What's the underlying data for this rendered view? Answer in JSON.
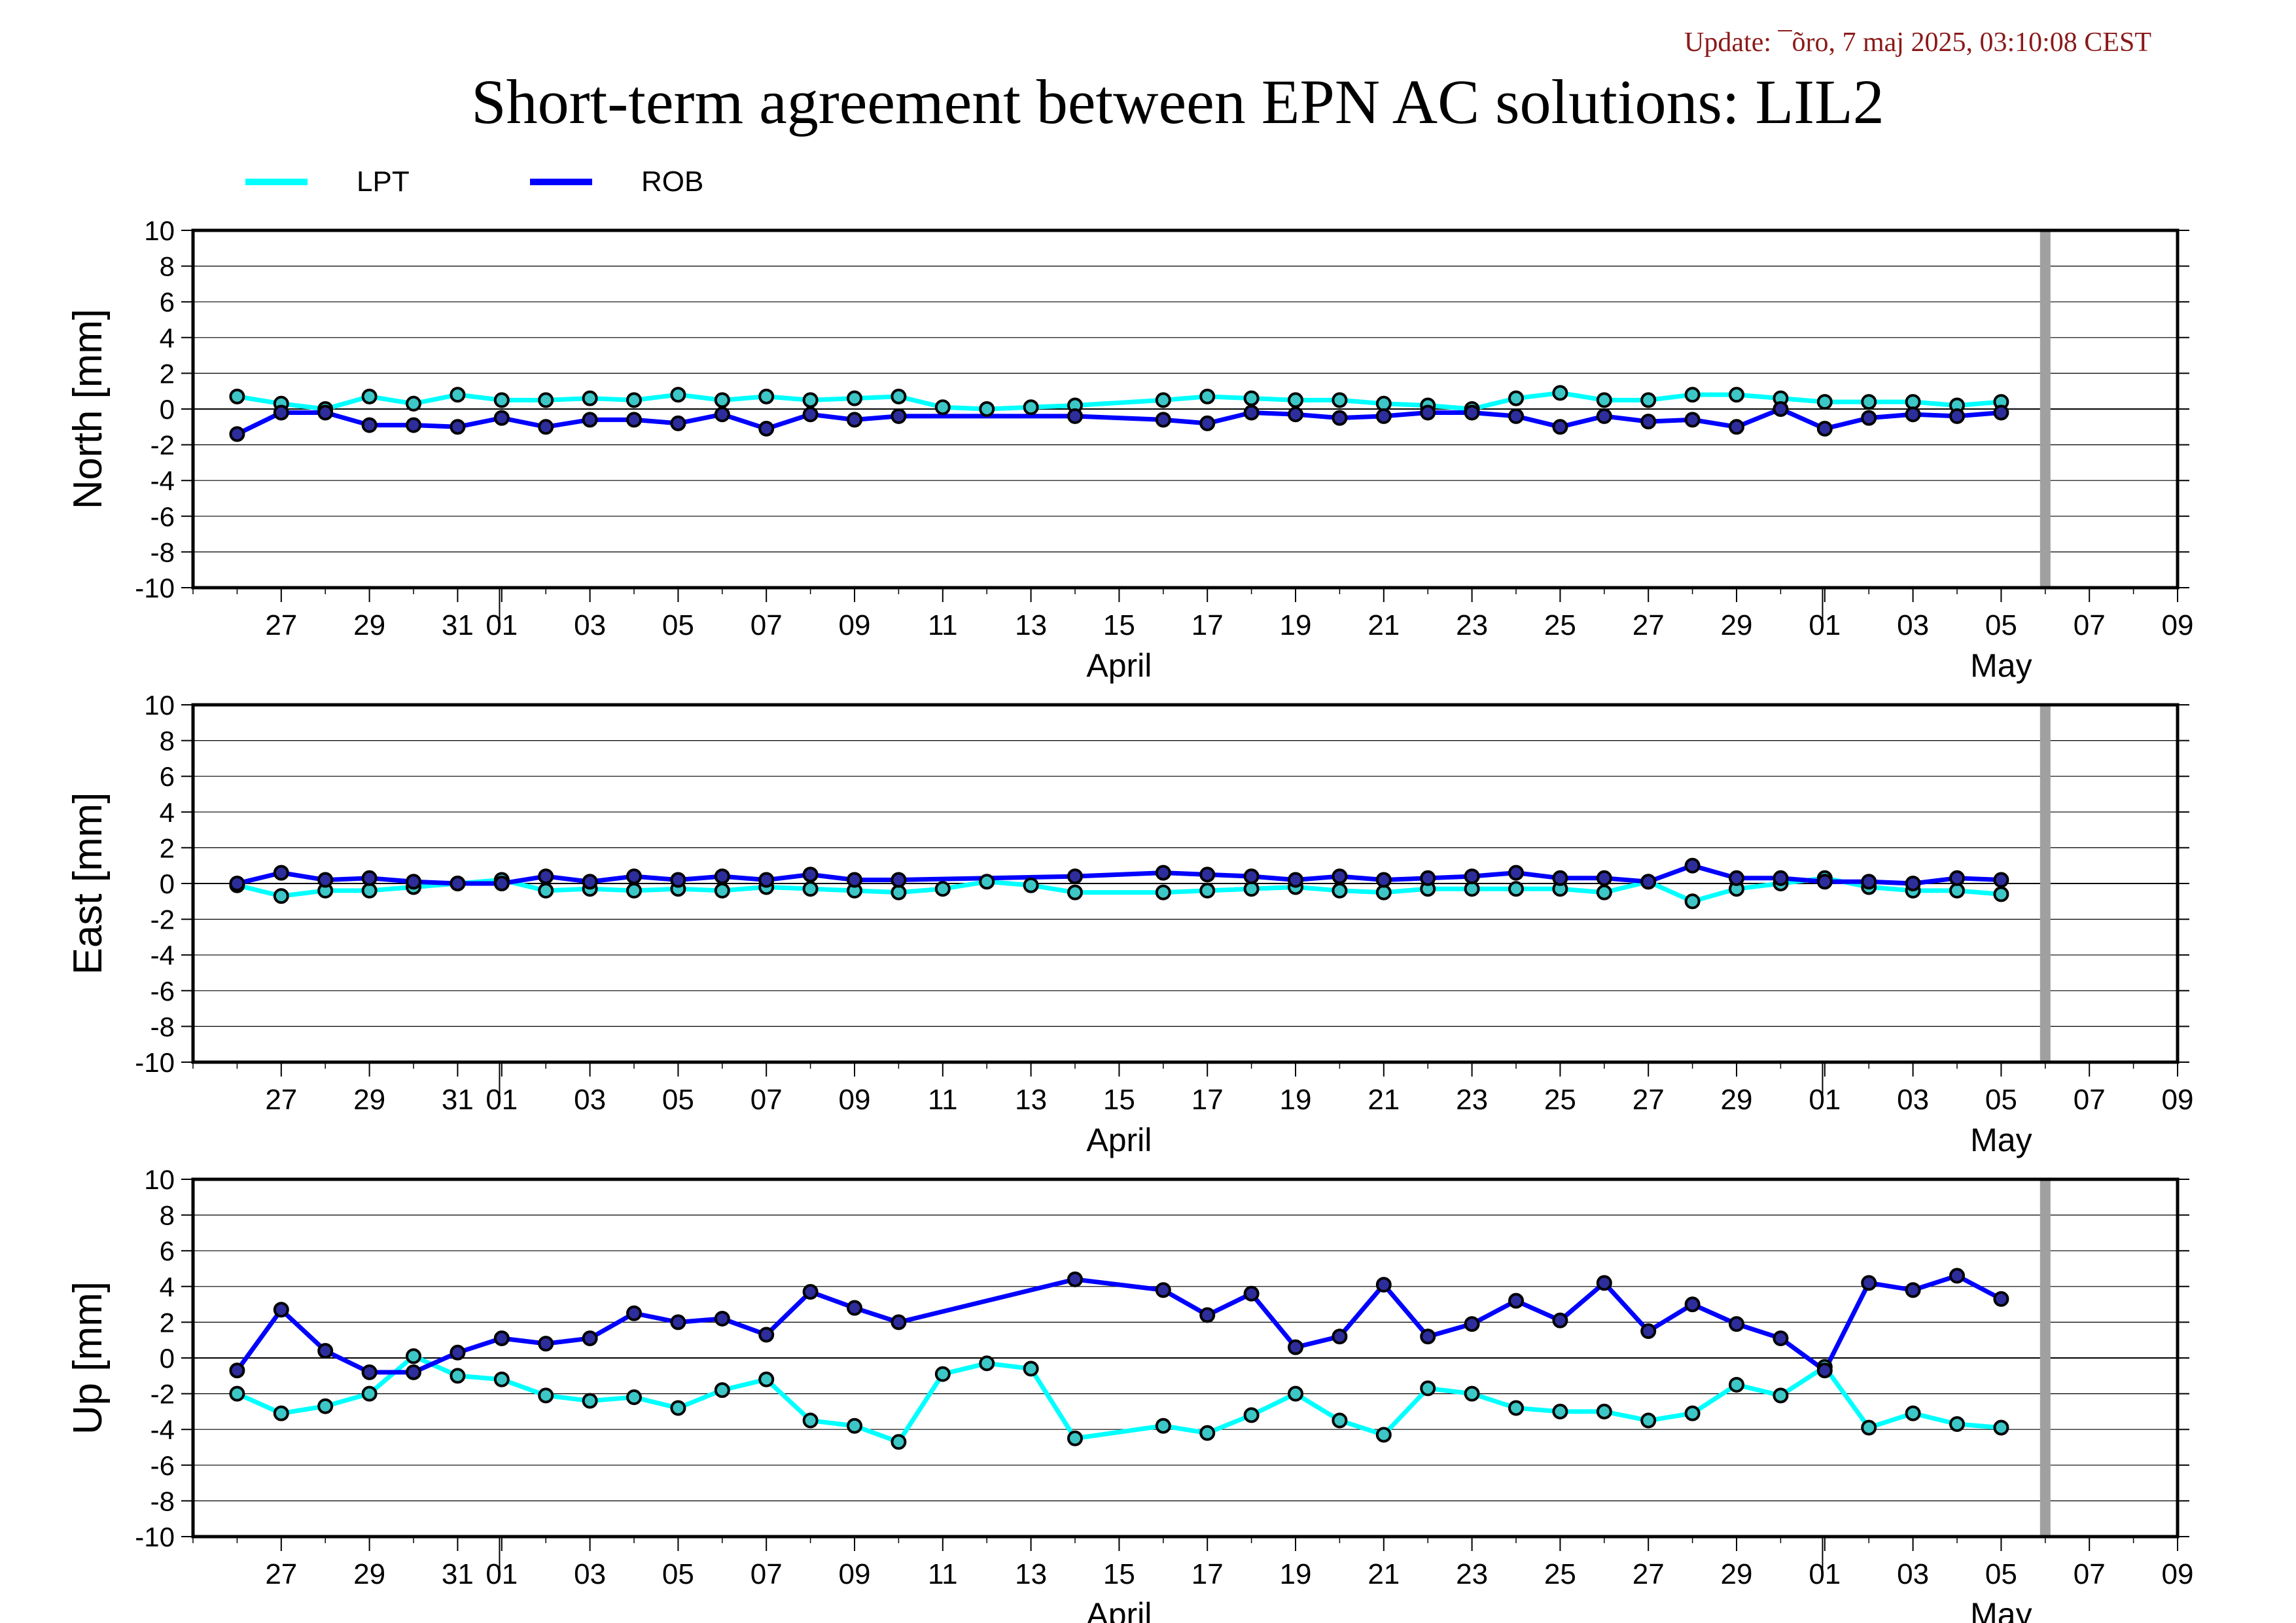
{
  "page": {
    "update_text": "Update: ¯õro, 7 maj 2025, 03:10:08 CEST",
    "title": "Short-term agreement between EPN AC solutions: LIL2"
  },
  "legend": [
    {
      "name": "LPT",
      "color": "#00ffff"
    },
    {
      "name": "ROB",
      "color": "#0000ff"
    }
  ],
  "colors": {
    "update_text": "#8b1a1a",
    "lpt": "#00ffff",
    "rob": "#0000ff",
    "today_marker": "#a0a0a0",
    "grid": "#000000"
  },
  "chart_data": [
    {
      "type": "line",
      "ylabel": "North [mm]",
      "ylim": [
        -10,
        10
      ],
      "yticks": [
        10,
        8,
        6,
        4,
        2,
        0,
        -2,
        -4,
        -6,
        -8,
        -10
      ],
      "xlim": [
        "2025-03-25",
        "2025-05-09"
      ],
      "xticks": [
        "27",
        "29",
        "31",
        "01",
        "03",
        "05",
        "07",
        "09",
        "11",
        "13",
        "15",
        "17",
        "19",
        "21",
        "23",
        "25",
        "27",
        "29",
        "01",
        "03",
        "05",
        "07",
        "09"
      ],
      "month_labels": [
        "April",
        "May"
      ],
      "series": [
        {
          "name": "LPT",
          "x": [
            "2025-03-26",
            "2025-03-27",
            "2025-03-28",
            "2025-03-29",
            "2025-03-30",
            "2025-03-31",
            "2025-04-01",
            "2025-04-02",
            "2025-04-03",
            "2025-04-04",
            "2025-04-05",
            "2025-04-06",
            "2025-04-07",
            "2025-04-08",
            "2025-04-09",
            "2025-04-10",
            "2025-04-11",
            "2025-04-12",
            "2025-04-13",
            "2025-04-14",
            "2025-04-16",
            "2025-04-17",
            "2025-04-18",
            "2025-04-19",
            "2025-04-20",
            "2025-04-21",
            "2025-04-22",
            "2025-04-23",
            "2025-04-24",
            "2025-04-25",
            "2025-04-26",
            "2025-04-27",
            "2025-04-28",
            "2025-04-29",
            "2025-04-30",
            "2025-05-01",
            "2025-05-02",
            "2025-05-03",
            "2025-05-04",
            "2025-05-05"
          ],
          "values": [
            0.7,
            0.3,
            0.0,
            0.7,
            0.3,
            0.8,
            0.5,
            0.5,
            0.6,
            0.5,
            0.8,
            0.5,
            0.7,
            0.5,
            0.6,
            0.7,
            0.1,
            0.0,
            0.1,
            0.2,
            0.5,
            0.7,
            0.6,
            0.5,
            0.5,
            0.3,
            0.2,
            0.0,
            0.6,
            0.9,
            0.5,
            0.5,
            0.8,
            0.8,
            0.6,
            0.4,
            0.4,
            0.4,
            0.2,
            0.4
          ]
        },
        {
          "name": "ROB",
          "x": [
            "2025-03-26",
            "2025-03-27",
            "2025-03-28",
            "2025-03-29",
            "2025-03-30",
            "2025-03-31",
            "2025-04-01",
            "2025-04-02",
            "2025-04-03",
            "2025-04-04",
            "2025-04-05",
            "2025-04-06",
            "2025-04-07",
            "2025-04-08",
            "2025-04-09",
            "2025-04-10",
            "2025-04-14",
            "2025-04-16",
            "2025-04-17",
            "2025-04-18",
            "2025-04-19",
            "2025-04-20",
            "2025-04-21",
            "2025-04-22",
            "2025-04-23",
            "2025-04-24",
            "2025-04-25",
            "2025-04-26",
            "2025-04-27",
            "2025-04-28",
            "2025-04-29",
            "2025-04-30",
            "2025-05-01",
            "2025-05-02",
            "2025-05-03",
            "2025-05-04",
            "2025-05-05"
          ],
          "values": [
            -1.4,
            -0.2,
            -0.2,
            -0.9,
            -0.9,
            -1.0,
            -0.5,
            -1.0,
            -0.6,
            -0.6,
            -0.8,
            -0.3,
            -1.1,
            -0.3,
            -0.6,
            -0.4,
            -0.4,
            -0.6,
            -0.8,
            -0.2,
            -0.3,
            -0.5,
            -0.4,
            -0.2,
            -0.2,
            -0.4,
            -1.0,
            -0.4,
            -0.7,
            -0.6,
            -1.0,
            0.0,
            -1.1,
            -0.5,
            -0.3,
            -0.4,
            -0.2
          ]
        }
      ]
    },
    {
      "type": "line",
      "ylabel": "East [mm]",
      "ylim": [
        -10,
        10
      ],
      "yticks": [
        10,
        8,
        6,
        4,
        2,
        0,
        -2,
        -4,
        -6,
        -8,
        -10
      ],
      "xlim": [
        "2025-03-25",
        "2025-05-09"
      ],
      "xticks": [
        "27",
        "29",
        "31",
        "01",
        "03",
        "05",
        "07",
        "09",
        "11",
        "13",
        "15",
        "17",
        "19",
        "21",
        "23",
        "25",
        "27",
        "29",
        "01",
        "03",
        "05",
        "07",
        "09"
      ],
      "month_labels": [
        "April",
        "May"
      ],
      "series": [
        {
          "name": "LPT",
          "x": [
            "2025-03-26",
            "2025-03-27",
            "2025-03-28",
            "2025-03-29",
            "2025-03-30",
            "2025-03-31",
            "2025-04-01",
            "2025-04-02",
            "2025-04-03",
            "2025-04-04",
            "2025-04-05",
            "2025-04-06",
            "2025-04-07",
            "2025-04-08",
            "2025-04-09",
            "2025-04-10",
            "2025-04-11",
            "2025-04-12",
            "2025-04-13",
            "2025-04-14",
            "2025-04-16",
            "2025-04-17",
            "2025-04-18",
            "2025-04-19",
            "2025-04-20",
            "2025-04-21",
            "2025-04-22",
            "2025-04-23",
            "2025-04-24",
            "2025-04-25",
            "2025-04-26",
            "2025-04-27",
            "2025-04-28",
            "2025-04-29",
            "2025-04-30",
            "2025-05-01",
            "2025-05-02",
            "2025-05-03",
            "2025-05-04",
            "2025-05-05"
          ],
          "values": [
            -0.1,
            -0.7,
            -0.4,
            -0.4,
            -0.2,
            0.0,
            0.2,
            -0.4,
            -0.3,
            -0.4,
            -0.3,
            -0.4,
            -0.2,
            -0.3,
            -0.4,
            -0.5,
            -0.3,
            0.1,
            -0.1,
            -0.5,
            -0.5,
            -0.4,
            -0.3,
            -0.2,
            -0.4,
            -0.5,
            -0.3,
            -0.3,
            -0.3,
            -0.3,
            -0.5,
            0.1,
            -1.0,
            -0.3,
            0.0,
            0.3,
            -0.2,
            -0.4,
            -0.4,
            -0.6
          ]
        },
        {
          "name": "ROB",
          "x": [
            "2025-03-26",
            "2025-03-27",
            "2025-03-28",
            "2025-03-29",
            "2025-03-30",
            "2025-03-31",
            "2025-04-01",
            "2025-04-02",
            "2025-04-03",
            "2025-04-04",
            "2025-04-05",
            "2025-04-06",
            "2025-04-07",
            "2025-04-08",
            "2025-04-09",
            "2025-04-10",
            "2025-04-14",
            "2025-04-16",
            "2025-04-17",
            "2025-04-18",
            "2025-04-19",
            "2025-04-20",
            "2025-04-21",
            "2025-04-22",
            "2025-04-23",
            "2025-04-24",
            "2025-04-25",
            "2025-04-26",
            "2025-04-27",
            "2025-04-28",
            "2025-04-29",
            "2025-04-30",
            "2025-05-01",
            "2025-05-02",
            "2025-05-03",
            "2025-05-04",
            "2025-05-05"
          ],
          "values": [
            0.0,
            0.6,
            0.2,
            0.3,
            0.1,
            0.0,
            0.0,
            0.4,
            0.1,
            0.4,
            0.2,
            0.4,
            0.2,
            0.5,
            0.2,
            0.2,
            0.4,
            0.6,
            0.5,
            0.4,
            0.2,
            0.4,
            0.2,
            0.3,
            0.4,
            0.6,
            0.3,
            0.3,
            0.1,
            1.0,
            0.3,
            0.3,
            0.1,
            0.1,
            0.0,
            0.3,
            0.2
          ]
        }
      ]
    },
    {
      "type": "line",
      "ylabel": "Up [mm]",
      "ylim": [
        -10,
        10
      ],
      "yticks": [
        10,
        8,
        6,
        4,
        2,
        0,
        -2,
        -4,
        -6,
        -8,
        -10
      ],
      "xlim": [
        "2025-03-25",
        "2025-05-09"
      ],
      "xticks": [
        "27",
        "29",
        "31",
        "01",
        "03",
        "05",
        "07",
        "09",
        "11",
        "13",
        "15",
        "17",
        "19",
        "21",
        "23",
        "25",
        "27",
        "29",
        "01",
        "03",
        "05",
        "07",
        "09"
      ],
      "month_labels": [
        "April",
        "May"
      ],
      "series": [
        {
          "name": "LPT",
          "x": [
            "2025-03-26",
            "2025-03-27",
            "2025-03-28",
            "2025-03-29",
            "2025-03-30",
            "2025-03-31",
            "2025-04-01",
            "2025-04-02",
            "2025-04-03",
            "2025-04-04",
            "2025-04-05",
            "2025-04-06",
            "2025-04-07",
            "2025-04-08",
            "2025-04-09",
            "2025-04-10",
            "2025-04-11",
            "2025-04-12",
            "2025-04-13",
            "2025-04-14",
            "2025-04-16",
            "2025-04-17",
            "2025-04-18",
            "2025-04-19",
            "2025-04-20",
            "2025-04-21",
            "2025-04-22",
            "2025-04-23",
            "2025-04-24",
            "2025-04-25",
            "2025-04-26",
            "2025-04-27",
            "2025-04-28",
            "2025-04-29",
            "2025-04-30",
            "2025-05-01",
            "2025-05-02",
            "2025-05-03",
            "2025-05-04",
            "2025-05-05"
          ],
          "values": [
            -2.0,
            -3.1,
            -2.7,
            -2.0,
            0.1,
            -1.0,
            -1.2,
            -2.1,
            -2.4,
            -2.2,
            -2.8,
            -1.8,
            -1.2,
            -3.5,
            -3.8,
            -4.7,
            -0.9,
            -0.3,
            -0.6,
            -4.5,
            -3.8,
            -4.2,
            -3.2,
            -2.0,
            -3.5,
            -4.3,
            -1.7,
            -2.0,
            -2.8,
            -3.0,
            -3.0,
            -3.5,
            -3.1,
            -1.5,
            -2.1,
            -0.5,
            -3.9,
            -3.1,
            -3.7,
            -3.9
          ]
        },
        {
          "name": "ROB",
          "x": [
            "2025-03-26",
            "2025-03-27",
            "2025-03-28",
            "2025-03-29",
            "2025-03-30",
            "2025-03-31",
            "2025-04-01",
            "2025-04-02",
            "2025-04-03",
            "2025-04-04",
            "2025-04-05",
            "2025-04-06",
            "2025-04-07",
            "2025-04-08",
            "2025-04-09",
            "2025-04-10",
            "2025-04-14",
            "2025-04-16",
            "2025-04-17",
            "2025-04-18",
            "2025-04-19",
            "2025-04-20",
            "2025-04-21",
            "2025-04-22",
            "2025-04-23",
            "2025-04-24",
            "2025-04-25",
            "2025-04-26",
            "2025-04-27",
            "2025-04-28",
            "2025-04-29",
            "2025-04-30",
            "2025-05-01",
            "2025-05-02",
            "2025-05-03",
            "2025-05-04",
            "2025-05-05"
          ],
          "values": [
            -0.7,
            2.7,
            0.4,
            -0.8,
            -0.8,
            0.3,
            1.1,
            0.8,
            1.1,
            2.5,
            2.0,
            2.2,
            1.3,
            3.7,
            2.8,
            2.0,
            4.4,
            3.8,
            2.4,
            3.6,
            0.6,
            1.2,
            4.1,
            1.2,
            1.9,
            3.2,
            2.1,
            4.2,
            1.5,
            3.0,
            1.9,
            1.1,
            -0.7,
            4.2,
            3.8,
            4.6,
            3.3
          ]
        }
      ]
    }
  ]
}
